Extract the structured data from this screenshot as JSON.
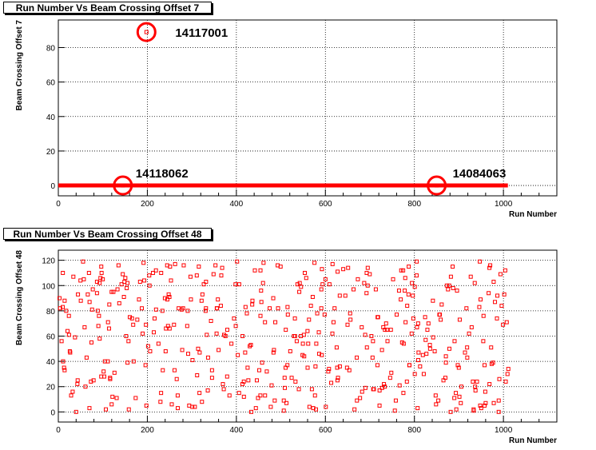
{
  "chart_data": [
    {
      "type": "scatter",
      "title": "Run Number Vs Beam Crossing Offset 7",
      "xlabel": "Run Number",
      "ylabel": "Beam Crossing Offset 7",
      "xlim": [
        0,
        1120
      ],
      "ylim": [
        -6,
        96
      ],
      "xticks": [
        0,
        200,
        400,
        600,
        800,
        1000
      ],
      "yticks": [
        0,
        20,
        40,
        60,
        80
      ],
      "grid": true,
      "marker_color": "#ff0000",
      "line_color": "#ff0000",
      "series": [
        {
          "points": [
            [
              198,
              89
            ],
            [
              145,
              0
            ],
            [
              850,
              0
            ]
          ]
        }
      ],
      "baseline": {
        "y": 0,
        "x_from": 0,
        "x_to": 1010
      },
      "annotations": [
        {
          "text": "14117001",
          "x": 198,
          "y": 89
        },
        {
          "text": "14118062",
          "x": 145,
          "y": 0
        },
        {
          "text": "14084063",
          "x": 850,
          "y": 0
        }
      ]
    },
    {
      "type": "scatter",
      "title": "Run Number Vs Beam Crossing Offset 48",
      "xlabel": "Run Number",
      "ylabel": "Beam Crossing Offset 48",
      "xlim": [
        0,
        1120
      ],
      "ylim": [
        -8,
        128
      ],
      "xticks": [
        0,
        200,
        400,
        600,
        800,
        1000
      ],
      "yticks": [
        0,
        20,
        40,
        60,
        80,
        100,
        120
      ],
      "grid": true,
      "marker_color": "#ff0000",
      "x_range": [
        0,
        1010
      ],
      "y_range": [
        0,
        120
      ],
      "n_points": 1010
    }
  ]
}
